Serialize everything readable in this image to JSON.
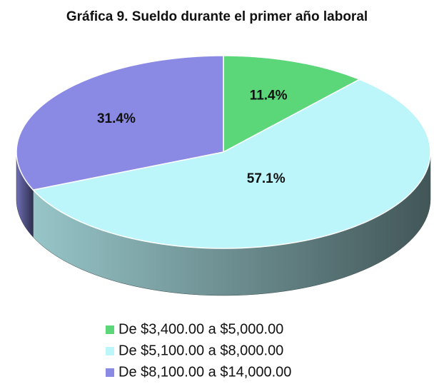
{
  "chart_data": {
    "type": "pie3d",
    "title": "Gráfica 9. Sueldo durante el primer año laboral",
    "categories": [
      "De $3,400.00 a $5,000.00",
      "De $5,100.00 a $8,000.00",
      "De $8,100.00 a $14,000.00"
    ],
    "values": [
      11.4,
      57.1,
      31.4
    ],
    "value_labels": [
      "11.4%",
      "57.1%",
      "31.4%"
    ],
    "colors": [
      "#5bd77a",
      "#bdf6fa",
      "#8a89e3"
    ],
    "legend": "bottom"
  }
}
